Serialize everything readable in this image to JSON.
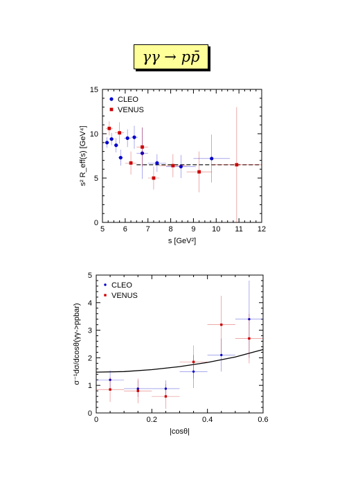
{
  "header": {
    "title": "γγ → pp̄"
  },
  "chart_data": [
    {
      "type": "scatter",
      "xlabel": "s [GeV²]",
      "ylabel": "s² R_eff(s) [GeV⁴]",
      "xlim": [
        5,
        12
      ],
      "ylim": [
        0,
        15
      ],
      "x_ticks": [
        "5",
        "6",
        "7",
        "8",
        "9",
        "10",
        "11",
        "12"
      ],
      "y_ticks": [
        "0",
        "5",
        "10",
        "15"
      ],
      "legend_position": "top-left",
      "series": [
        {
          "name": "CLEO",
          "marker": "circle",
          "color": "#0000cc",
          "points": [
            {
              "x": 5.2,
              "y": 9.0,
              "xerr": 0.1,
              "yerr": 0.6
            },
            {
              "x": 5.4,
              "y": 9.4,
              "xerr": 0.1,
              "yerr": 0.7
            },
            {
              "x": 5.6,
              "y": 8.7,
              "xerr": 0.1,
              "yerr": 0.8
            },
            {
              "x": 5.8,
              "y": 7.3,
              "xerr": 0.1,
              "yerr": 0.9
            },
            {
              "x": 6.1,
              "y": 9.5,
              "xerr": 0.15,
              "yerr": 1.0
            },
            {
              "x": 6.4,
              "y": 9.6,
              "xerr": 0.15,
              "yerr": 1.3
            },
            {
              "x": 6.75,
              "y": 7.8,
              "xerr": 0.25,
              "yerr": 2.9
            },
            {
              "x": 7.4,
              "y": 6.7,
              "xerr": 0.4,
              "yerr": 1.0
            },
            {
              "x": 8.45,
              "y": 6.3,
              "xerr": 0.65,
              "yerr": 1.3
            },
            {
              "x": 9.8,
              "y": 7.2,
              "xerr": 0.8,
              "yerr": 2.7
            }
          ]
        },
        {
          "name": "VENUS",
          "marker": "square",
          "color": "#cc0000",
          "points": [
            {
              "x": 5.3,
              "y": 10.6,
              "xerr": 0.15,
              "yerr": 0.8
            },
            {
              "x": 5.75,
              "y": 10.1,
              "xerr": 0.2,
              "yerr": 1.2
            },
            {
              "x": 6.25,
              "y": 6.7,
              "xerr": 0.25,
              "yerr": 1.3
            },
            {
              "x": 6.75,
              "y": 8.5,
              "xerr": 0.25,
              "yerr": 2.2
            },
            {
              "x": 7.25,
              "y": 5.0,
              "xerr": 0.25,
              "yerr": 1.3
            },
            {
              "x": 8.1,
              "y": 6.4,
              "xerr": 0.6,
              "yerr": 1.3
            },
            {
              "x": 9.25,
              "y": 5.7,
              "xerr": 0.55,
              "yerr": 2.3
            },
            {
              "x": 10.9,
              "y": 6.5,
              "xerr": 1.1,
              "yerr": 6.5
            }
          ]
        }
      ],
      "reference_line": {
        "style": "dashed",
        "x_start": 6.5,
        "x_end": 12,
        "y": 6.5
      }
    },
    {
      "type": "scatter",
      "xlabel": "|cosθ|",
      "ylabel": "σ⁻¹dσ/dcosθ(γγ->ppbar)",
      "xlim": [
        0,
        0.6
      ],
      "ylim": [
        0,
        5
      ],
      "x_ticks": [
        "0",
        "0.2",
        "0.4",
        "0.6"
      ],
      "y_ticks": [
        "0",
        "1",
        "2",
        "3",
        "4",
        "5"
      ],
      "legend_position": "top-left",
      "series": [
        {
          "name": "CLEO",
          "marker": "circle",
          "color": "#0000cc",
          "points": [
            {
              "x": 0.05,
              "y": 1.2,
              "xerr": 0.05,
              "yerr": 0.35
            },
            {
              "x": 0.15,
              "y": 0.88,
              "xerr": 0.05,
              "yerr": 0.3
            },
            {
              "x": 0.25,
              "y": 0.88,
              "xerr": 0.05,
              "yerr": 0.3
            },
            {
              "x": 0.35,
              "y": 1.5,
              "xerr": 0.05,
              "yerr": 0.6
            },
            {
              "x": 0.45,
              "y": 2.1,
              "xerr": 0.05,
              "yerr": 0.6
            },
            {
              "x": 0.55,
              "y": 3.4,
              "xerr": 0.05,
              "yerr": 1.4
            }
          ]
        },
        {
          "name": "VENUS",
          "marker": "square",
          "color": "#cc0000",
          "points": [
            {
              "x": 0.05,
              "y": 0.85,
              "xerr": 0.05,
              "yerr": 0.45
            },
            {
              "x": 0.15,
              "y": 0.8,
              "xerr": 0.05,
              "yerr": 0.45
            },
            {
              "x": 0.25,
              "y": 0.6,
              "xerr": 0.05,
              "yerr": 0.45
            },
            {
              "x": 0.35,
              "y": 1.85,
              "xerr": 0.05,
              "yerr": 0.6
            },
            {
              "x": 0.45,
              "y": 3.2,
              "xerr": 0.05,
              "yerr": 1.05
            },
            {
              "x": 0.55,
              "y": 2.7,
              "xerr": 0.05,
              "yerr": 0.9
            }
          ]
        }
      ],
      "curve": {
        "x": [
          0,
          0.1,
          0.2,
          0.3,
          0.4,
          0.5,
          0.6
        ],
        "y": [
          1.48,
          1.5,
          1.57,
          1.68,
          1.83,
          2.03,
          2.3
        ]
      }
    }
  ]
}
